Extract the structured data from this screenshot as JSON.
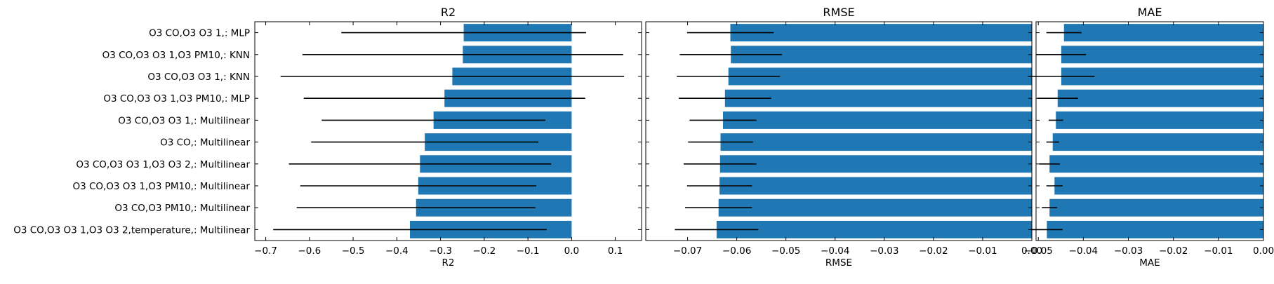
{
  "chart_data": [
    {
      "type": "bar",
      "orientation": "horizontal",
      "title": "R2",
      "xlabel": "R2",
      "xlim": [
        -0.725,
        0.16
      ],
      "xticks": [
        -0.7,
        -0.6,
        -0.5,
        -0.4,
        -0.3,
        -0.2,
        -0.1,
        0.0,
        0.1
      ],
      "xtick_labels": [
        "−0.7",
        "−0.6",
        "−0.5",
        "−0.4",
        "−0.3",
        "−0.2",
        "−0.1",
        "0.0",
        "0.1"
      ],
      "categories": [
        "O3 CO,O3 O3 1,: MLP",
        "O3 CO,O3 O3 1,O3 PM10,: KNN",
        "O3 CO,O3 O3 1,: KNN",
        "O3 CO,O3 O3 1,O3 PM10,: MLP",
        "O3 CO,O3 O3 1,: Multilinear",
        "O3 CO,: Multilinear",
        "O3 CO,O3 O3 1,O3 O3 2,: Multilinear",
        "O3 CO,O3 O3 1,O3 PM10,: Multilinear",
        "O3 CO,O3 PM10,: Multilinear",
        "O3 CO,O3 O3 1,O3 O3 2,temperature,: Multilinear"
      ],
      "values": [
        -0.247,
        -0.249,
        -0.273,
        -0.291,
        -0.316,
        -0.336,
        -0.347,
        -0.351,
        -0.356,
        -0.37
      ],
      "errors": [
        0.28,
        0.367,
        0.393,
        0.322,
        0.256,
        0.26,
        0.3,
        0.27,
        0.273,
        0.313
      ],
      "color": "#1f77b4",
      "grid": false
    },
    {
      "type": "bar",
      "orientation": "horizontal",
      "title": "RMSE",
      "xlabel": "RMSE",
      "xlim": [
        -0.0785,
        0.0
      ],
      "xticks": [
        -0.07,
        -0.06,
        -0.05,
        -0.04,
        -0.03,
        -0.02,
        -0.01,
        0.0
      ],
      "xtick_labels": [
        "−0.07",
        "−0.06",
        "−0.05",
        "−0.04",
        "−0.03",
        "−0.02",
        "−0.01",
        "0.00"
      ],
      "values": [
        -0.0613,
        -0.0612,
        -0.0617,
        -0.0624,
        -0.0628,
        -0.0633,
        -0.0634,
        -0.0635,
        -0.0637,
        -0.0641
      ],
      "errors": [
        0.0088,
        0.0104,
        0.0105,
        0.0094,
        0.0068,
        0.0066,
        0.0074,
        0.0066,
        0.0068,
        0.0085
      ],
      "color": "#1f77b4",
      "grid": false
    },
    {
      "type": "bar",
      "orientation": "horizontal",
      "title": "MAE",
      "xlabel": "MAE",
      "xlim": [
        -0.0505,
        0.0
      ],
      "xticks": [
        -0.05,
        -0.04,
        -0.03,
        -0.02,
        -0.01,
        0.0
      ],
      "xtick_labels": [
        "−0.05",
        "−0.04",
        "−0.03",
        "−0.02",
        "−0.01",
        "0.00"
      ],
      "values": [
        -0.0443,
        -0.0449,
        -0.0449,
        -0.0457,
        -0.0461,
        -0.0468,
        -0.0475,
        -0.0464,
        -0.0475,
        -0.0481
      ],
      "errors": [
        0.0039,
        0.0055,
        0.0074,
        0.0045,
        0.0016,
        0.0014,
        0.0023,
        0.0018,
        0.0017,
        0.0035
      ],
      "color": "#1f77b4",
      "grid": false
    }
  ]
}
